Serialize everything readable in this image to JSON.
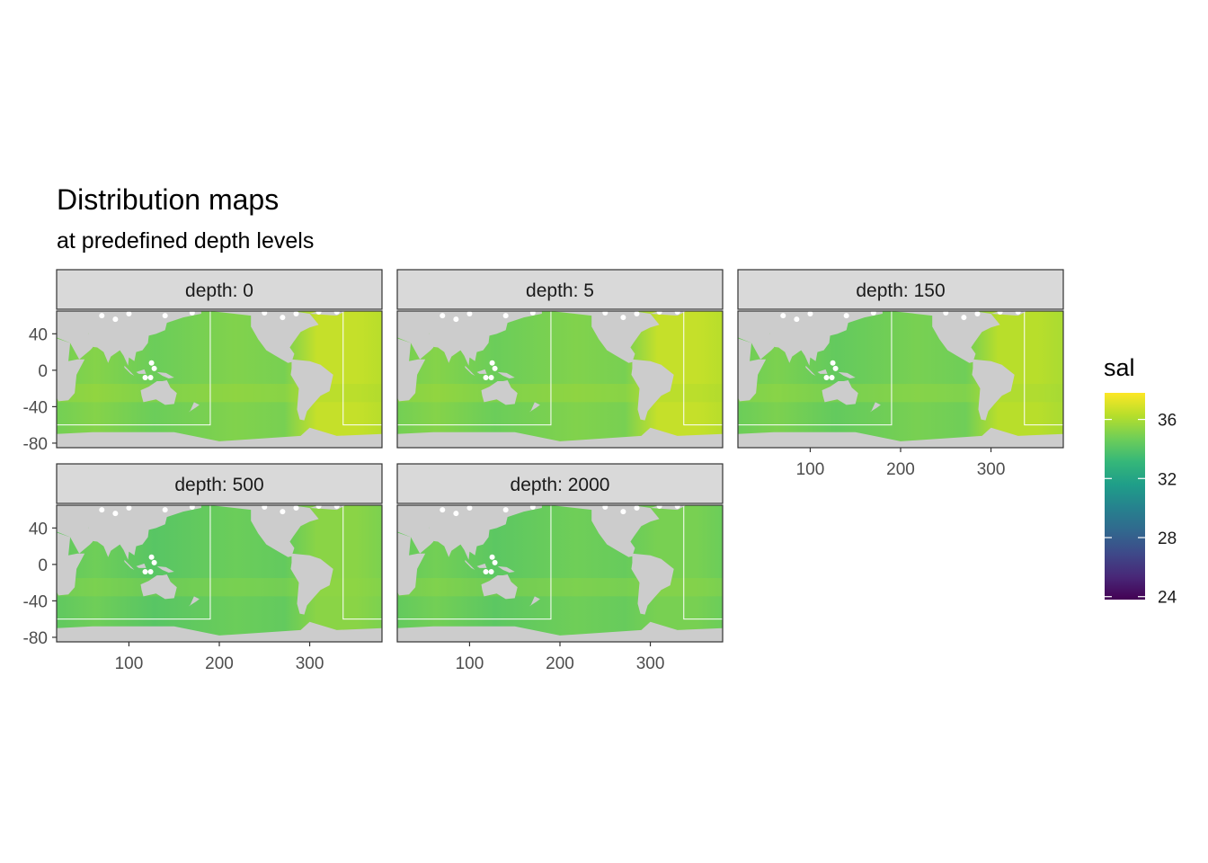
{
  "title": "Distribution maps",
  "subtitle": "at predefined depth levels",
  "strip_prefix": "depth: ",
  "colors": {
    "land": "#cccccc",
    "strip_fill": "#d9d9d9",
    "panel_border": "#333333",
    "tick_text": "#4d4d4d",
    "ocean_base": "#7ad151"
  },
  "chart_data": {
    "type": "heatmap",
    "facet_var": "depth",
    "panels": [
      {
        "depth": "0",
        "mean_sal": 35.2,
        "atlantic_sal": 36.6
      },
      {
        "depth": "5",
        "mean_sal": 35.2,
        "atlantic_sal": 36.6
      },
      {
        "depth": "150",
        "mean_sal": 35.0,
        "atlantic_sal": 36.3
      },
      {
        "depth": "500",
        "mean_sal": 34.7,
        "atlantic_sal": 35.3
      },
      {
        "depth": "2000",
        "mean_sal": 34.8,
        "atlantic_sal": 34.9
      }
    ],
    "xlim": [
      20,
      380
    ],
    "ylim": [
      -85,
      65
    ],
    "xticks": [
      100,
      200,
      300
    ],
    "yticks": [
      40,
      0,
      -40,
      -80
    ],
    "legend": {
      "title": "sal",
      "range": [
        23.8,
        37.8
      ],
      "breaks": [
        24,
        28,
        32,
        36
      ],
      "colormap": [
        "#440154",
        "#482878",
        "#3e4989",
        "#31688e",
        "#26828e",
        "#1f9e89",
        "#35b779",
        "#6ece58",
        "#b5de2b",
        "#fde725"
      ]
    },
    "grid": false
  }
}
